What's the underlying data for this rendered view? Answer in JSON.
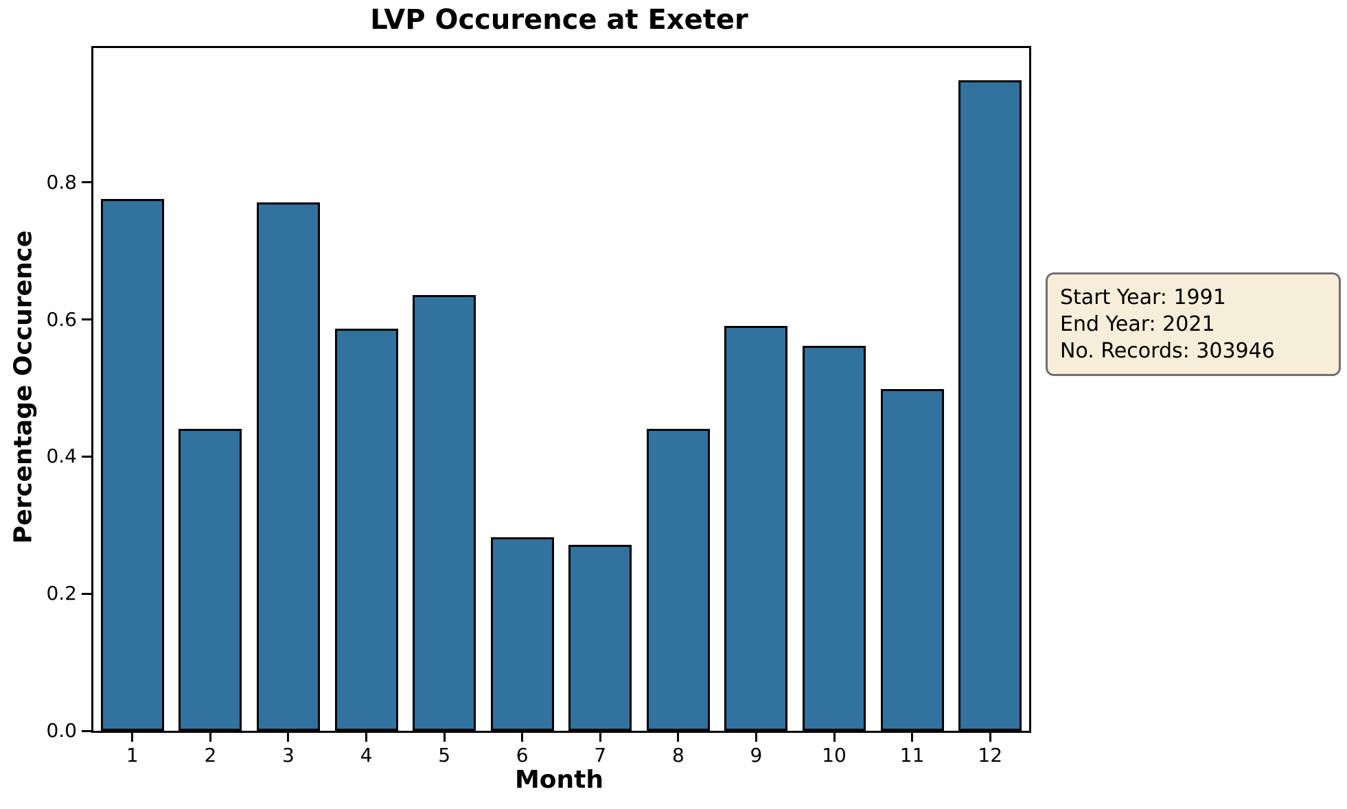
{
  "title": "LVP Occurence at Exeter",
  "info_box": {
    "lines": [
      "Start Year: 1991",
      "End Year: 2021",
      "No. Records: 303946"
    ],
    "background": "#F7EEDA",
    "border_color": "#6f6f6f"
  },
  "chart_data": {
    "type": "bar",
    "title": "LVP Occurence at Exeter",
    "xlabel": "Month",
    "ylabel": "Percentage Occurence",
    "categories": [
      "1",
      "2",
      "3",
      "4",
      "5",
      "6",
      "7",
      "8",
      "9",
      "10",
      "11",
      "12"
    ],
    "values": [
      0.776,
      0.44,
      0.771,
      0.587,
      0.636,
      0.282,
      0.271,
      0.44,
      0.591,
      0.562,
      0.499,
      0.949
    ],
    "ylim": [
      0,
      0.996
    ],
    "yticks": [
      0.0,
      0.2,
      0.4,
      0.6,
      0.8
    ],
    "grid": false,
    "legend": null,
    "bar_color": "#31739E",
    "bar_edge_color": "#000000",
    "bar_width_fraction": 0.81
  }
}
